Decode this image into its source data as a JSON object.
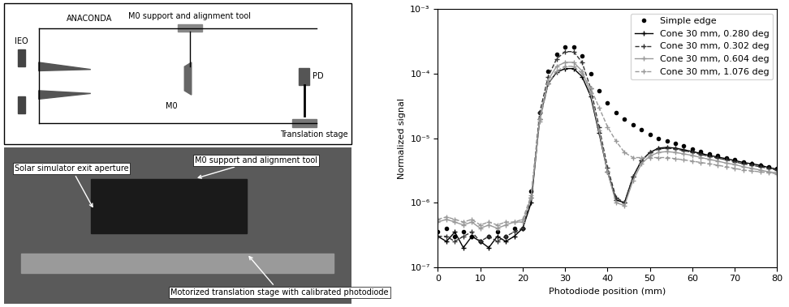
{
  "diagram": {
    "labels": {
      "source": "IEO",
      "tube": "ANACONDA",
      "support": "M0 support and alignment tool",
      "mirror": "M0",
      "detector": "PD",
      "stage": "Translation stage"
    }
  },
  "photo": {
    "labels": [
      "Solar simulator exit aperture",
      "M0 support and alignment tool",
      "Motorized translation stage with calibrated photodiode"
    ]
  },
  "chart_data": {
    "type": "line",
    "x_label": "Photodiode position (mm)",
    "y_label": "Normalized signal",
    "log": "y",
    "legend": "upper right",
    "xlim": [
      0,
      80
    ],
    "xticks": [
      0,
      10,
      20,
      30,
      40,
      50,
      60,
      70,
      80
    ],
    "ylim": [
      1e-07,
      0.001
    ],
    "yticks": [
      {
        "value": 1e-07,
        "label": "10⁻⁷"
      },
      {
        "value": 1e-06,
        "label": "10⁻⁶"
      },
      {
        "value": 1e-05,
        "label": "10⁻⁵"
      },
      {
        "value": 0.0001,
        "label": "10⁻⁴"
      },
      {
        "value": 0.001,
        "label": "10⁻³"
      }
    ],
    "x": [
      0,
      2,
      4,
      6,
      8,
      10,
      12,
      14,
      16,
      18,
      20,
      22,
      24,
      26,
      28,
      30,
      32,
      34,
      36,
      38,
      40,
      42,
      44,
      46,
      48,
      50,
      52,
      54,
      56,
      58,
      60,
      62,
      64,
      66,
      68,
      70,
      72,
      74,
      76,
      78,
      80
    ],
    "series": [
      {
        "name": "Simple edge",
        "color": "#000000",
        "marker": "o",
        "line_style": "none",
        "values": [
          3.5e-07,
          4e-07,
          3e-07,
          3.5e-07,
          3e-07,
          2.5e-07,
          3e-07,
          3.5e-07,
          3e-07,
          4e-07,
          4e-07,
          1.5e-06,
          2.5e-05,
          0.00011,
          0.0002,
          0.00026,
          0.00026,
          0.00019,
          0.0001,
          5.5e-05,
          3.5e-05,
          2.5e-05,
          2e-05,
          1.6e-05,
          1.35e-05,
          1.15e-05,
          1e-05,
          9e-06,
          8.2e-06,
          7.5e-06,
          6.8e-06,
          6.2e-06,
          5.7e-06,
          5.3e-06,
          4.9e-06,
          4.6e-06,
          4.3e-06,
          4e-06,
          3.8e-06,
          3.6e-06,
          3.4e-06
        ]
      },
      {
        "name": "Cone 30 mm, 0.280 deg",
        "color": "#000000",
        "marker": "+",
        "line_style": "solid",
        "values": [
          3e-07,
          2.5e-07,
          3.5e-07,
          2e-07,
          3e-07,
          2.5e-07,
          2e-07,
          3e-07,
          2.5e-07,
          3e-07,
          4e-07,
          1e-06,
          2e-05,
          7e-05,
          0.000105,
          0.00012,
          0.00012,
          9e-05,
          4.5e-05,
          1.2e-05,
          3e-06,
          1.1e-06,
          1e-06,
          2.5e-06,
          4.5e-06,
          6e-06,
          7e-06,
          7.2e-06,
          7e-06,
          6.6e-06,
          6.2e-06,
          5.8e-06,
          5.4e-06,
          5.1e-06,
          4.8e-06,
          4.5e-06,
          4.2e-06,
          4e-06,
          3.8e-06,
          3.5e-06,
          3.3e-06
        ]
      },
      {
        "name": "Cone 30 mm, 0.302 deg",
        "color": "#333333",
        "marker": "+",
        "line_style": "dashed",
        "values": [
          3e-07,
          3e-07,
          2.5e-07,
          3e-07,
          3.5e-07,
          2.5e-07,
          3e-07,
          2.5e-07,
          3e-07,
          3.5e-07,
          4e-07,
          1.2e-06,
          2.5e-05,
          9e-05,
          0.00017,
          0.00022,
          0.00022,
          0.00015,
          6e-05,
          1.5e-05,
          3.5e-06,
          1.2e-06,
          1e-06,
          2.5e-06,
          4.5e-06,
          6e-06,
          6.8e-06,
          7e-06,
          6.8e-06,
          6.4e-06,
          6e-06,
          5.6e-06,
          5.2e-06,
          4.9e-06,
          4.6e-06,
          4.3e-06,
          4e-06,
          3.8e-06,
          3.6e-06,
          3.4e-06,
          3.2e-06
        ]
      },
      {
        "name": "Cone 30 mm, 0.604 deg",
        "color": "#999999",
        "marker": "+",
        "line_style": "solid",
        "values": [
          5e-07,
          5.5e-07,
          5e-07,
          4.5e-07,
          5e-07,
          4e-07,
          4.5e-07,
          4e-07,
          4.5e-07,
          5e-07,
          5e-07,
          1.2e-06,
          2e-05,
          8e-05,
          0.00013,
          0.00015,
          0.00015,
          0.00011,
          5e-05,
          1.3e-05,
          3e-06,
          1e-06,
          9e-07,
          2.2e-06,
          4e-06,
          5.3e-06,
          6e-06,
          6.2e-06,
          6e-06,
          5.7e-06,
          5.4e-06,
          5e-06,
          4.7e-06,
          4.4e-06,
          4.1e-06,
          3.9e-06,
          3.6e-06,
          3.4e-06,
          3.2e-06,
          3e-06,
          2.9e-06
        ]
      },
      {
        "name": "Cone 30 mm, 1.076 deg",
        "color": "#999999",
        "marker": "+",
        "line_style": "dashed",
        "values": [
          5.5e-07,
          6e-07,
          5.5e-07,
          5e-07,
          5.5e-07,
          4.5e-07,
          5e-07,
          4.5e-07,
          5e-07,
          5e-07,
          5.5e-07,
          1.3e-06,
          1.8e-05,
          7e-05,
          0.00011,
          0.00013,
          0.00013,
          0.0001,
          6e-05,
          3e-05,
          1.5e-05,
          9e-06,
          6e-06,
          5e-06,
          5e-06,
          5e-06,
          5e-06,
          5e-06,
          4.8e-06,
          4.6e-06,
          4.4e-06,
          4.2e-06,
          4e-06,
          3.8e-06,
          3.6e-06,
          3.4e-06,
          3.2e-06,
          3.1e-06,
          3e-06,
          2.9e-06,
          2.8e-06
        ]
      }
    ]
  }
}
